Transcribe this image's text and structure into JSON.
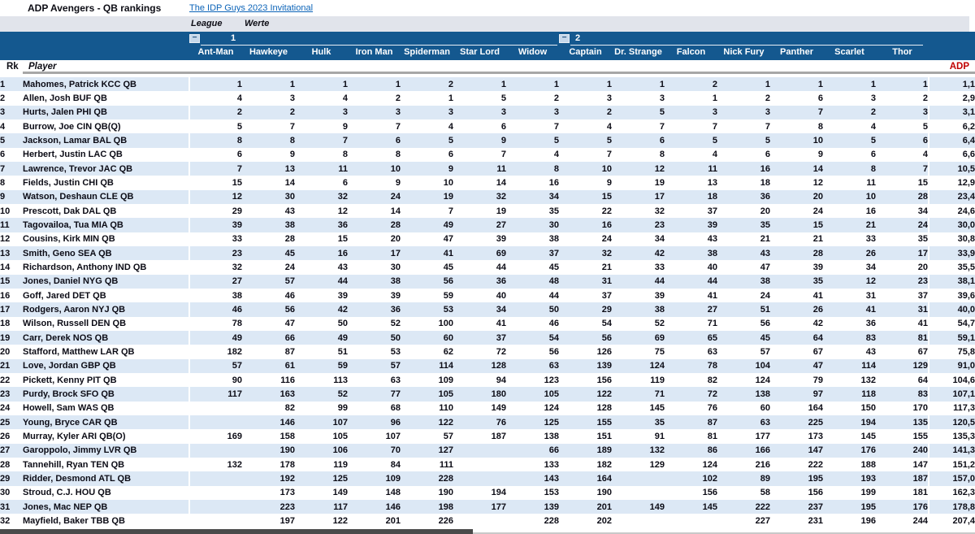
{
  "title": "ADP Avengers - QB rankings",
  "link_text": "The IDP Guys 2023 Invitational",
  "filter_row": {
    "league_label": "League",
    "werte_label": "Werte"
  },
  "groups": [
    {
      "label": "1",
      "collapse_glyph": "−"
    },
    {
      "label": "2",
      "collapse_glyph": "−"
    }
  ],
  "teams": [
    "Ant-Man",
    "Hawkeye",
    "Hulk",
    "Iron Man",
    "Spiderman",
    "Star Lord",
    "Widow",
    "Captain",
    "Dr. Strange",
    "Falcon",
    "Nick Fury",
    "Panther",
    "Scarlet",
    "Thor"
  ],
  "table": {
    "rk_header": "Rk",
    "player_header": "Player",
    "adp_header": "ADP",
    "rows": [
      {
        "rk": "1",
        "player": "Mahomes, Patrick KCC QB",
        "values": [
          "1",
          "1",
          "1",
          "1",
          "2",
          "1",
          "1",
          "1",
          "1",
          "2",
          "1",
          "1",
          "1",
          "1"
        ],
        "adp": "1,1"
      },
      {
        "rk": "2",
        "player": "Allen, Josh BUF QB",
        "values": [
          "4",
          "3",
          "4",
          "2",
          "1",
          "5",
          "2",
          "3",
          "3",
          "1",
          "2",
          "6",
          "3",
          "2"
        ],
        "adp": "2,9"
      },
      {
        "rk": "3",
        "player": "Hurts, Jalen PHI QB",
        "values": [
          "2",
          "2",
          "3",
          "3",
          "3",
          "3",
          "3",
          "2",
          "5",
          "3",
          "3",
          "7",
          "2",
          "3"
        ],
        "adp": "3,1"
      },
      {
        "rk": "4",
        "player": "Burrow, Joe CIN QB(Q)",
        "values": [
          "5",
          "7",
          "9",
          "7",
          "4",
          "6",
          "7",
          "4",
          "7",
          "7",
          "7",
          "8",
          "4",
          "5"
        ],
        "adp": "6,2"
      },
      {
        "rk": "5",
        "player": "Jackson, Lamar BAL QB",
        "values": [
          "8",
          "8",
          "7",
          "6",
          "5",
          "9",
          "5",
          "5",
          "6",
          "5",
          "5",
          "10",
          "5",
          "6"
        ],
        "adp": "6,4"
      },
      {
        "rk": "6",
        "player": "Herbert, Justin LAC QB",
        "values": [
          "6",
          "9",
          "8",
          "8",
          "6",
          "7",
          "4",
          "7",
          "8",
          "4",
          "6",
          "9",
          "6",
          "4"
        ],
        "adp": "6,6"
      },
      {
        "rk": "7",
        "player": "Lawrence, Trevor JAC QB",
        "values": [
          "7",
          "13",
          "11",
          "10",
          "9",
          "11",
          "8",
          "10",
          "12",
          "11",
          "16",
          "14",
          "8",
          "7"
        ],
        "adp": "10,5"
      },
      {
        "rk": "8",
        "player": "Fields, Justin CHI QB",
        "values": [
          "15",
          "14",
          "6",
          "9",
          "10",
          "14",
          "16",
          "9",
          "19",
          "13",
          "18",
          "12",
          "11",
          "15"
        ],
        "adp": "12,9"
      },
      {
        "rk": "9",
        "player": "Watson, Deshaun CLE QB",
        "values": [
          "12",
          "30",
          "32",
          "24",
          "19",
          "32",
          "34",
          "15",
          "17",
          "18",
          "36",
          "20",
          "10",
          "28"
        ],
        "adp": "23,4"
      },
      {
        "rk": "10",
        "player": "Prescott, Dak DAL QB",
        "values": [
          "29",
          "43",
          "12",
          "14",
          "7",
          "19",
          "35",
          "22",
          "32",
          "37",
          "20",
          "24",
          "16",
          "34"
        ],
        "adp": "24,6"
      },
      {
        "rk": "11",
        "player": "Tagovailoa, Tua MIA QB",
        "values": [
          "39",
          "38",
          "36",
          "28",
          "49",
          "27",
          "30",
          "16",
          "23",
          "39",
          "35",
          "15",
          "21",
          "24"
        ],
        "adp": "30,0"
      },
      {
        "rk": "12",
        "player": "Cousins, Kirk MIN QB",
        "values": [
          "33",
          "28",
          "15",
          "20",
          "47",
          "39",
          "38",
          "24",
          "34",
          "43",
          "21",
          "21",
          "33",
          "35"
        ],
        "adp": "30,8"
      },
      {
        "rk": "13",
        "player": "Smith, Geno SEA QB",
        "values": [
          "23",
          "45",
          "16",
          "17",
          "41",
          "69",
          "37",
          "32",
          "42",
          "38",
          "43",
          "28",
          "26",
          "17"
        ],
        "adp": "33,9"
      },
      {
        "rk": "14",
        "player": "Richardson, Anthony IND QB",
        "values": [
          "32",
          "24",
          "43",
          "30",
          "45",
          "44",
          "45",
          "21",
          "33",
          "40",
          "47",
          "39",
          "34",
          "20"
        ],
        "adp": "35,5"
      },
      {
        "rk": "15",
        "player": "Jones, Daniel NYG QB",
        "values": [
          "27",
          "57",
          "44",
          "38",
          "56",
          "36",
          "48",
          "31",
          "44",
          "44",
          "38",
          "35",
          "12",
          "23"
        ],
        "adp": "38,1"
      },
      {
        "rk": "16",
        "player": "Goff, Jared DET QB",
        "values": [
          "38",
          "46",
          "39",
          "39",
          "59",
          "40",
          "44",
          "37",
          "39",
          "41",
          "24",
          "41",
          "31",
          "37"
        ],
        "adp": "39,6"
      },
      {
        "rk": "17",
        "player": "Rodgers, Aaron NYJ QB",
        "values": [
          "46",
          "56",
          "42",
          "36",
          "53",
          "34",
          "50",
          "29",
          "38",
          "27",
          "51",
          "26",
          "41",
          "31"
        ],
        "adp": "40,0"
      },
      {
        "rk": "18",
        "player": "Wilson, Russell DEN QB",
        "values": [
          "78",
          "47",
          "50",
          "52",
          "100",
          "41",
          "46",
          "54",
          "52",
          "71",
          "56",
          "42",
          "36",
          "41"
        ],
        "adp": "54,7"
      },
      {
        "rk": "19",
        "player": "Carr, Derek NOS QB",
        "values": [
          "49",
          "66",
          "49",
          "50",
          "60",
          "37",
          "54",
          "56",
          "69",
          "65",
          "45",
          "64",
          "83",
          "81"
        ],
        "adp": "59,1"
      },
      {
        "rk": "20",
        "player": "Stafford, Matthew LAR QB",
        "values": [
          "182",
          "87",
          "51",
          "53",
          "62",
          "72",
          "56",
          "126",
          "75",
          "63",
          "57",
          "67",
          "43",
          "67"
        ],
        "adp": "75,8"
      },
      {
        "rk": "21",
        "player": "Love, Jordan GBP QB",
        "values": [
          "57",
          "61",
          "59",
          "57",
          "114",
          "128",
          "63",
          "139",
          "124",
          "78",
          "104",
          "47",
          "114",
          "129"
        ],
        "adp": "91,0"
      },
      {
        "rk": "22",
        "player": "Pickett, Kenny PIT QB",
        "values": [
          "90",
          "116",
          "113",
          "63",
          "109",
          "94",
          "123",
          "156",
          "119",
          "82",
          "124",
          "79",
          "132",
          "64"
        ],
        "adp": "104,6"
      },
      {
        "rk": "23",
        "player": "Purdy, Brock SFO QB",
        "values": [
          "117",
          "163",
          "52",
          "77",
          "105",
          "180",
          "105",
          "122",
          "71",
          "72",
          "138",
          "97",
          "118",
          "83"
        ],
        "adp": "107,1"
      },
      {
        "rk": "24",
        "player": "Howell, Sam WAS QB",
        "values": [
          "",
          "82",
          "99",
          "68",
          "110",
          "149",
          "124",
          "128",
          "145",
          "76",
          "60",
          "164",
          "150",
          "170"
        ],
        "adp": "117,3"
      },
      {
        "rk": "25",
        "player": "Young, Bryce CAR QB",
        "values": [
          "",
          "146",
          "107",
          "96",
          "122",
          "76",
          "125",
          "155",
          "35",
          "87",
          "63",
          "225",
          "194",
          "135"
        ],
        "adp": "120,5"
      },
      {
        "rk": "26",
        "player": "Murray, Kyler ARI QB(O)",
        "values": [
          "169",
          "158",
          "105",
          "107",
          "57",
          "187",
          "138",
          "151",
          "91",
          "81",
          "177",
          "173",
          "145",
          "155"
        ],
        "adp": "135,3"
      },
      {
        "rk": "27",
        "player": "Garoppolo, Jimmy LVR QB",
        "values": [
          "",
          "190",
          "106",
          "70",
          "127",
          "",
          "66",
          "189",
          "132",
          "86",
          "166",
          "147",
          "176",
          "240"
        ],
        "adp": "141,3"
      },
      {
        "rk": "28",
        "player": "Tannehill, Ryan TEN QB",
        "values": [
          "132",
          "178",
          "119",
          "84",
          "111",
          "",
          "133",
          "182",
          "129",
          "124",
          "216",
          "222",
          "188",
          "147"
        ],
        "adp": "151,2"
      },
      {
        "rk": "29",
        "player": "Ridder, Desmond ATL QB",
        "values": [
          "",
          "192",
          "125",
          "109",
          "228",
          "",
          "143",
          "164",
          "",
          "102",
          "89",
          "195",
          "193",
          "187"
        ],
        "adp": "157,0"
      },
      {
        "rk": "30",
        "player": "Stroud, C.J. HOU QB",
        "values": [
          "",
          "173",
          "149",
          "148",
          "190",
          "194",
          "153",
          "190",
          "",
          "156",
          "58",
          "156",
          "199",
          "181"
        ],
        "adp": "162,3"
      },
      {
        "rk": "31",
        "player": "Jones, Mac NEP QB",
        "values": [
          "",
          "223",
          "117",
          "146",
          "198",
          "177",
          "139",
          "201",
          "149",
          "145",
          "222",
          "237",
          "195",
          "176"
        ],
        "adp": "178,8"
      },
      {
        "rk": "32",
        "player": "Mayfield, Baker TBB QB",
        "values": [
          "",
          "197",
          "122",
          "201",
          "226",
          "",
          "228",
          "202",
          "",
          "",
          "227",
          "231",
          "196",
          "244"
        ],
        "adp": "207,4"
      }
    ]
  },
  "colors": {
    "header_blue": "#14588f",
    "band_blue": "#dce8f5",
    "filter_gray": "#e1e4eb",
    "adp_red": "#c00000",
    "link_blue": "#0b63b8"
  }
}
